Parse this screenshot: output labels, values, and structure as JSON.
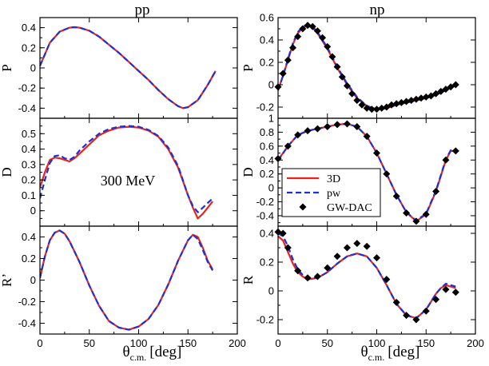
{
  "chart_data": {
    "type": "line",
    "titles": {
      "left": "pp",
      "right": "np"
    },
    "xlabel": {
      "main": "θ",
      "sub": "c.m.",
      "unit": "[deg]"
    },
    "xlim": [
      0,
      200
    ],
    "xticks": [
      "0",
      "50",
      "100",
      "150",
      "200"
    ],
    "annotation": "300 MeV",
    "legend": {
      "placement": "right-middle",
      "entries": [
        {
          "label": "3D",
          "style": "solid",
          "color": "#e8241c"
        },
        {
          "label": "pw",
          "style": "dashed",
          "color": "#1f2fd8"
        },
        {
          "label": "GW-DAC",
          "style": "diamond",
          "color": "#000000"
        }
      ]
    },
    "panels": [
      {
        "id": "pp-P",
        "column": "left",
        "row": 0,
        "ylabel": "P",
        "ylim": [
          -0.5,
          0.5
        ],
        "yticks": [
          {
            "v": 0.4,
            "t": "0.4"
          },
          {
            "v": 0.2,
            "t": "0.2"
          },
          {
            "v": 0,
            "t": "0"
          },
          {
            "v": -0.2,
            "t": "-0.2"
          },
          {
            "v": -0.4,
            "t": "-0.4"
          }
        ],
        "series": [
          {
            "name": "3D",
            "x": [
              0,
              10,
              20,
              30,
              35,
              40,
              50,
              60,
              70,
              80,
              90,
              100,
              110,
              120,
              130,
              140,
              145,
              150,
              160,
              170,
              178
            ],
            "y": [
              0.02,
              0.25,
              0.36,
              0.4,
              0.405,
              0.4,
              0.37,
              0.31,
              0.23,
              0.15,
              0.06,
              -0.03,
              -0.12,
              -0.22,
              -0.31,
              -0.38,
              -0.4,
              -0.39,
              -0.32,
              -0.17,
              -0.03
            ]
          },
          {
            "name": "pw",
            "x": [
              0,
              10,
              20,
              30,
              35,
              40,
              50,
              60,
              70,
              80,
              90,
              100,
              110,
              120,
              130,
              140,
              145,
              150,
              160,
              170,
              178
            ],
            "y": [
              0.02,
              0.25,
              0.36,
              0.4,
              0.405,
              0.4,
              0.37,
              0.31,
              0.23,
              0.15,
              0.06,
              -0.03,
              -0.12,
              -0.22,
              -0.31,
              -0.38,
              -0.4,
              -0.39,
              -0.32,
              -0.17,
              -0.03
            ]
          }
        ]
      },
      {
        "id": "pp-D",
        "column": "left",
        "row": 1,
        "ylabel": "D",
        "ylim": [
          -0.1,
          0.6
        ],
        "yticks": [
          {
            "v": 0.5,
            "t": "0.5"
          },
          {
            "v": 0.4,
            "t": "0.4"
          },
          {
            "v": 0.3,
            "t": "0.3"
          },
          {
            "v": 0.2,
            "t": "0.2"
          },
          {
            "v": 0.1,
            "t": "0.1"
          },
          {
            "v": 0,
            "t": "0"
          }
        ],
        "series": [
          {
            "name": "3D",
            "x": [
              0,
              5,
              10,
              15,
              20,
              25,
              30,
              35,
              40,
              50,
              60,
              70,
              80,
              90,
              100,
              110,
              120,
              130,
              140,
              150,
              155,
              160,
              165,
              170,
              175
            ],
            "y": [
              0.15,
              0.25,
              0.33,
              0.345,
              0.34,
              0.33,
              0.32,
              0.34,
              0.37,
              0.43,
              0.49,
              0.52,
              0.54,
              0.545,
              0.54,
              0.52,
              0.48,
              0.4,
              0.28,
              0.1,
              0.02,
              -0.05,
              -0.02,
              0.02,
              0.06
            ]
          },
          {
            "name": "pw",
            "x": [
              0,
              5,
              10,
              15,
              20,
              25,
              30,
              35,
              40,
              50,
              60,
              70,
              80,
              90,
              100,
              110,
              120,
              130,
              140,
              150,
              155,
              160,
              165,
              170,
              175
            ],
            "y": [
              0.08,
              0.2,
              0.31,
              0.355,
              0.36,
              0.34,
              0.33,
              0.35,
              0.39,
              0.45,
              0.5,
              0.53,
              0.545,
              0.55,
              0.545,
              0.525,
              0.485,
              0.41,
              0.29,
              0.1,
              0.03,
              -0.01,
              0.02,
              0.05,
              0.08
            ]
          }
        ]
      },
      {
        "id": "pp-R",
        "column": "left",
        "row": 2,
        "ylabel": "R’",
        "ylim": [
          -0.5,
          0.5
        ],
        "yticks": [
          {
            "v": 0.4,
            "t": "0.4"
          },
          {
            "v": 0.2,
            "t": "0.2"
          },
          {
            "v": 0,
            "t": "0"
          },
          {
            "v": -0.2,
            "t": "-0.2"
          },
          {
            "v": -0.4,
            "t": "-0.4"
          }
        ],
        "series": [
          {
            "name": "3D",
            "x": [
              0,
              5,
              10,
              15,
              20,
              25,
              30,
              40,
              50,
              60,
              70,
              80,
              90,
              100,
              110,
              120,
              130,
              140,
              150,
              155,
              160,
              165,
              170,
              175
            ],
            "y": [
              0.02,
              0.22,
              0.37,
              0.44,
              0.46,
              0.43,
              0.36,
              0.17,
              -0.05,
              -0.24,
              -0.38,
              -0.44,
              -0.46,
              -0.43,
              -0.36,
              -0.23,
              -0.04,
              0.18,
              0.37,
              0.42,
              0.4,
              0.3,
              0.18,
              0.1
            ]
          },
          {
            "name": "pw",
            "x": [
              0,
              5,
              10,
              15,
              20,
              25,
              30,
              40,
              50,
              60,
              70,
              80,
              90,
              100,
              110,
              120,
              130,
              140,
              150,
              155,
              160,
              165,
              170,
              175
            ],
            "y": [
              0.02,
              0.22,
              0.37,
              0.44,
              0.46,
              0.43,
              0.36,
              0.17,
              -0.05,
              -0.24,
              -0.38,
              -0.44,
              -0.46,
              -0.43,
              -0.36,
              -0.23,
              -0.04,
              0.18,
              0.37,
              0.42,
              0.38,
              0.28,
              0.17,
              0.09
            ]
          }
        ]
      },
      {
        "id": "np-P",
        "column": "right",
        "row": 0,
        "ylabel": "P",
        "ylim": [
          -0.3,
          0.6
        ],
        "yticks": [
          {
            "v": 0.6,
            "t": "0.6"
          },
          {
            "v": 0.4,
            "t": "0.4"
          },
          {
            "v": 0.2,
            "t": "0.2"
          },
          {
            "v": 0,
            "t": "0"
          },
          {
            "v": -0.2,
            "t": "-0.2"
          }
        ],
        "series": [
          {
            "name": "3D",
            "x": [
              0,
              5,
              10,
              15,
              20,
              25,
              30,
              35,
              40,
              50,
              60,
              70,
              80,
              90,
              100,
              110,
              120,
              130,
              140,
              150,
              160,
              170,
              180
            ],
            "y": [
              -0.05,
              0.08,
              0.22,
              0.36,
              0.46,
              0.51,
              0.53,
              0.51,
              0.46,
              0.32,
              0.15,
              0.0,
              -0.12,
              -0.19,
              -0.22,
              -0.21,
              -0.18,
              -0.16,
              -0.14,
              -0.12,
              -0.09,
              -0.05,
              0.0
            ]
          },
          {
            "name": "pw",
            "x": [
              0,
              5,
              10,
              15,
              20,
              25,
              30,
              35,
              40,
              50,
              60,
              70,
              80,
              90,
              100,
              110,
              120,
              130,
              140,
              150,
              160,
              170,
              180
            ],
            "y": [
              -0.05,
              0.08,
              0.23,
              0.37,
              0.47,
              0.52,
              0.54,
              0.52,
              0.47,
              0.33,
              0.16,
              0.01,
              -0.11,
              -0.19,
              -0.22,
              -0.21,
              -0.18,
              -0.16,
              -0.14,
              -0.12,
              -0.09,
              -0.05,
              0.0
            ]
          },
          {
            "name": "GW-DAC",
            "x": [
              0,
              5,
              10,
              15,
              20,
              25,
              30,
              35,
              40,
              45,
              50,
              55,
              60,
              65,
              70,
              75,
              80,
              85,
              90,
              95,
              100,
              105,
              110,
              115,
              120,
              125,
              130,
              135,
              140,
              145,
              150,
              155,
              160,
              165,
              170,
              175,
              180
            ],
            "y": [
              -0.02,
              0.1,
              0.22,
              0.33,
              0.43,
              0.5,
              0.53,
              0.52,
              0.48,
              0.42,
              0.34,
              0.25,
              0.16,
              0.07,
              -0.01,
              -0.08,
              -0.14,
              -0.18,
              -0.21,
              -0.22,
              -0.22,
              -0.21,
              -0.2,
              -0.18,
              -0.17,
              -0.16,
              -0.15,
              -0.14,
              -0.13,
              -0.12,
              -0.11,
              -0.1,
              -0.08,
              -0.06,
              -0.04,
              -0.02,
              0.0
            ],
            "markers_only": true
          }
        ]
      },
      {
        "id": "np-D",
        "column": "right",
        "row": 1,
        "ylabel": "D",
        "ylim": [
          -0.55,
          1.0
        ],
        "yticks": [
          {
            "v": 1,
            "t": "1"
          },
          {
            "v": 0.8,
            "t": "0.8"
          },
          {
            "v": 0.6,
            "t": "0.6"
          },
          {
            "v": 0.4,
            "t": "0.4"
          },
          {
            "v": 0.2,
            "t": "0.2"
          },
          {
            "v": 0,
            "t": "0"
          },
          {
            "v": -0.2,
            "t": "-0.2"
          },
          {
            "v": -0.4,
            "t": "-0.4"
          }
        ],
        "series": [
          {
            "name": "3D",
            "x": [
              0,
              10,
              20,
              30,
              40,
              50,
              60,
              70,
              80,
              90,
              100,
              110,
              120,
              130,
              140,
              150,
              160,
              170,
              175,
              180
            ],
            "y": [
              0.4,
              0.6,
              0.76,
              0.82,
              0.85,
              0.88,
              0.91,
              0.92,
              0.88,
              0.74,
              0.5,
              0.2,
              -0.1,
              -0.35,
              -0.48,
              -0.38,
              -0.05,
              0.4,
              0.53,
              0.53
            ]
          },
          {
            "name": "pw",
            "x": [
              0,
              10,
              20,
              30,
              40,
              50,
              60,
              70,
              80,
              90,
              100,
              110,
              120,
              130,
              140,
              150,
              160,
              170,
              175,
              180
            ],
            "y": [
              0.39,
              0.6,
              0.76,
              0.82,
              0.85,
              0.88,
              0.91,
              0.92,
              0.88,
              0.74,
              0.5,
              0.2,
              -0.1,
              -0.35,
              -0.47,
              -0.37,
              -0.04,
              0.41,
              0.54,
              0.54
            ]
          },
          {
            "name": "GW-DAC",
            "x": [
              0,
              10,
              20,
              30,
              40,
              50,
              60,
              70,
              80,
              90,
              100,
              110,
              120,
              130,
              140,
              150,
              160,
              170,
              180
            ],
            "y": [
              0.42,
              0.6,
              0.76,
              0.82,
              0.85,
              0.88,
              0.91,
              0.92,
              0.88,
              0.74,
              0.5,
              0.2,
              -0.12,
              -0.36,
              -0.48,
              -0.38,
              -0.05,
              0.4,
              0.53
            ],
            "markers_only": true
          }
        ]
      },
      {
        "id": "np-R",
        "column": "right",
        "row": 2,
        "ylabel": "R",
        "ylim": [
          -0.3,
          0.45
        ],
        "yticks": [
          {
            "v": 0.4,
            "t": "0.4"
          },
          {
            "v": 0.2,
            "t": "0.2"
          },
          {
            "v": 0,
            "t": "0"
          },
          {
            "v": -0.2,
            "t": "-0.2"
          }
        ],
        "series": [
          {
            "name": "3D",
            "x": [
              0,
              5,
              10,
              15,
              20,
              25,
              30,
              40,
              50,
              60,
              70,
              80,
              90,
              100,
              110,
              120,
              130,
              140,
              150,
              160,
              165,
              170,
              175,
              180
            ],
            "y": [
              0.38,
              0.35,
              0.27,
              0.19,
              0.13,
              0.1,
              0.08,
              0.09,
              0.13,
              0.19,
              0.24,
              0.26,
              0.24,
              0.16,
              0.04,
              -0.09,
              -0.17,
              -0.19,
              -0.13,
              -0.02,
              0.02,
              0.04,
              0.03,
              0.02
            ]
          },
          {
            "name": "pw",
            "x": [
              0,
              5,
              10,
              15,
              20,
              25,
              30,
              40,
              50,
              60,
              70,
              80,
              90,
              100,
              110,
              120,
              130,
              140,
              150,
              160,
              165,
              170,
              175,
              180
            ],
            "y": [
              0.4,
              0.38,
              0.31,
              0.22,
              0.15,
              0.11,
              0.09,
              0.09,
              0.13,
              0.19,
              0.24,
              0.26,
              0.24,
              0.16,
              0.04,
              -0.09,
              -0.17,
              -0.19,
              -0.13,
              -0.02,
              0.02,
              0.05,
              0.04,
              0.03
            ]
          },
          {
            "name": "GW-DAC",
            "x": [
              0,
              5,
              10,
              20,
              30,
              40,
              50,
              60,
              70,
              80,
              90,
              100,
              110,
              120,
              130,
              140,
              150,
              160,
              170,
              180
            ],
            "y": [
              0.41,
              0.4,
              0.3,
              0.14,
              0.09,
              0.1,
              0.16,
              0.24,
              0.3,
              0.33,
              0.31,
              0.23,
              0.08,
              -0.08,
              -0.17,
              -0.2,
              -0.14,
              -0.06,
              0.01,
              -0.01
            ],
            "markers_only": true
          }
        ]
      }
    ]
  }
}
